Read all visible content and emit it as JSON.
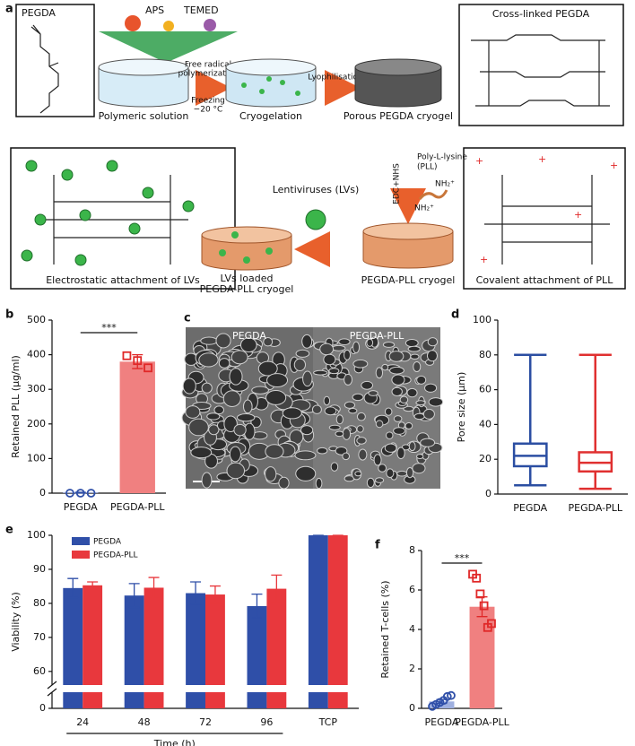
{
  "diagram": {
    "label": "a",
    "monomer": "PEGDA",
    "initiators": [
      "APS",
      "TEMED"
    ],
    "stages": [
      "Polymeric solution",
      "Cryogelation",
      "Porous PEGDA cryogel",
      "PEGDA-PLL cryogel"
    ],
    "loaded_stage": [
      "LVs loaded",
      "PEGDA-PLL cryogel"
    ],
    "step_polymerization": [
      "Free radical",
      "polymerization"
    ],
    "step_freezing": [
      "Freezing",
      "−20 °C"
    ],
    "step_lyophilisation": "Lyophilisation",
    "step_coupling": "EDC+NHS",
    "pll": [
      "Poly-L-lysine",
      "(PLL)"
    ],
    "amine": "NH₂⁺",
    "virus": "Lentiviruses (LVs)",
    "boxes": [
      "Cross-linked PEGDA",
      "Electrostatic attachment of LVs",
      "Covalent attachment of PLL"
    ]
  },
  "image": {
    "label": "c",
    "panels": [
      "PEGDA",
      "PEGDA-PLL"
    ]
  },
  "chart_data": [
    {
      "type": "bar",
      "label": "b",
      "ylabel": "Retained PLL (µg/ml)",
      "categories": [
        "PEGDA",
        "PEGDA-PLL"
      ],
      "values": [
        1.5,
        380
      ],
      "errors": [
        1,
        20
      ],
      "points": [
        [
          0,
          0,
          0
        ],
        [
          397,
          383,
          362
        ]
      ],
      "colors": [
        "#7f95d6",
        "#f08080"
      ],
      "edge_colors": [
        "#2f4fa8",
        "#e02828"
      ],
      "markers": [
        "circle",
        "square"
      ],
      "significance": "***",
      "ylim": [
        0,
        500
      ],
      "yticks": [
        0,
        100,
        200,
        300,
        400,
        500
      ]
    },
    {
      "type": "box",
      "label": "d",
      "ylabel": "Pore size (µm)",
      "ylim": [
        0,
        100
      ],
      "yticks": [
        0,
        20,
        40,
        60,
        80,
        100
      ],
      "series": [
        {
          "name": "PEGDA",
          "color": "#2b4ea2",
          "whislo": 5,
          "q1": 16,
          "med": 22,
          "q3": 29,
          "whishi": 80
        },
        {
          "name": "PEGDA-PLL",
          "color": "#e03030",
          "whislo": 3,
          "q1": 13,
          "med": 18,
          "q3": 24,
          "whishi": 80
        }
      ]
    },
    {
      "type": "bar",
      "label": "e",
      "ylabel": "Viability (%)",
      "xlabel": "Time (h)",
      "categories": [
        "24",
        "48",
        "72",
        "96",
        "TCP"
      ],
      "series": [
        {
          "name": "PEGDA",
          "color": "#2f4fa8",
          "values": [
            84.5,
            82.3,
            83.0,
            79.2,
            100
          ],
          "errors": [
            2.8,
            3.5,
            3.3,
            3.5,
            0
          ]
        },
        {
          "name": "PEGDA-PLL",
          "color": "#e8383d",
          "values": [
            85.3,
            84.6,
            82.6,
            84.3,
            100
          ],
          "errors": [
            1.0,
            3.0,
            2.5,
            4.0,
            0
          ]
        }
      ],
      "legend": "upper-left",
      "ylim": [
        0,
        100
      ],
      "ybreak": [
        4,
        56
      ],
      "yticks": [
        0,
        60,
        70,
        80,
        90,
        100
      ]
    },
    {
      "type": "bar",
      "label": "f",
      "ylabel": "Retained T-cells (%)",
      "categories": [
        "PEGDA",
        "PEGDA-PLL"
      ],
      "values": [
        0.35,
        5.15
      ],
      "errors": [
        0.1,
        0.5
      ],
      "points": [
        [
          0.1,
          0.2,
          0.3,
          0.4,
          0.6,
          0.65
        ],
        [
          6.8,
          6.6,
          5.8,
          5.2,
          4.1,
          4.3
        ]
      ],
      "colors": [
        "#9fb0e0",
        "#f08080"
      ],
      "edge_colors": [
        "#2f4fa8",
        "#e02828"
      ],
      "markers": [
        "circle",
        "square"
      ],
      "significance": "***",
      "ylim": [
        0,
        8
      ],
      "yticks": [
        0,
        2,
        4,
        6,
        8
      ]
    }
  ]
}
